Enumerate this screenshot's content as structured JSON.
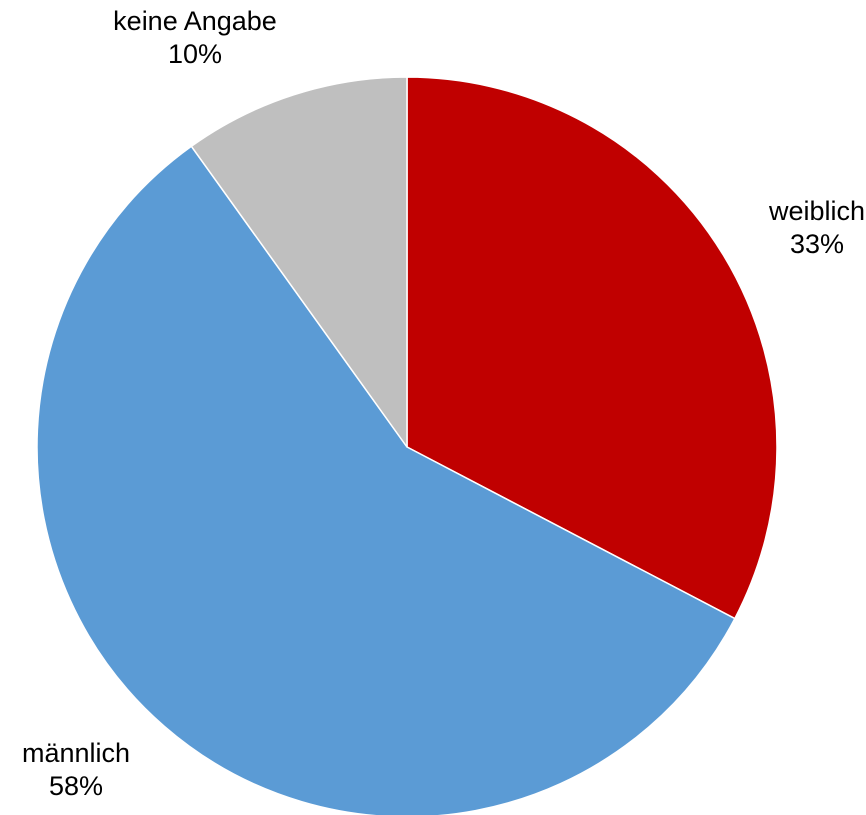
{
  "chart_data": {
    "type": "pie",
    "title": "",
    "legend": "none",
    "start_angle_deg": 0,
    "direction": "clockwise",
    "slices": [
      {
        "label": "weiblich",
        "value": 33,
        "value_label": "33%",
        "color": "#C00000"
      },
      {
        "label": "männlich",
        "value": 58,
        "value_label": "58%",
        "color": "#5B9BD5"
      },
      {
        "label": "keine Angabe",
        "value": 10,
        "value_label": "10%",
        "color": "#BFBFBF"
      }
    ]
  }
}
